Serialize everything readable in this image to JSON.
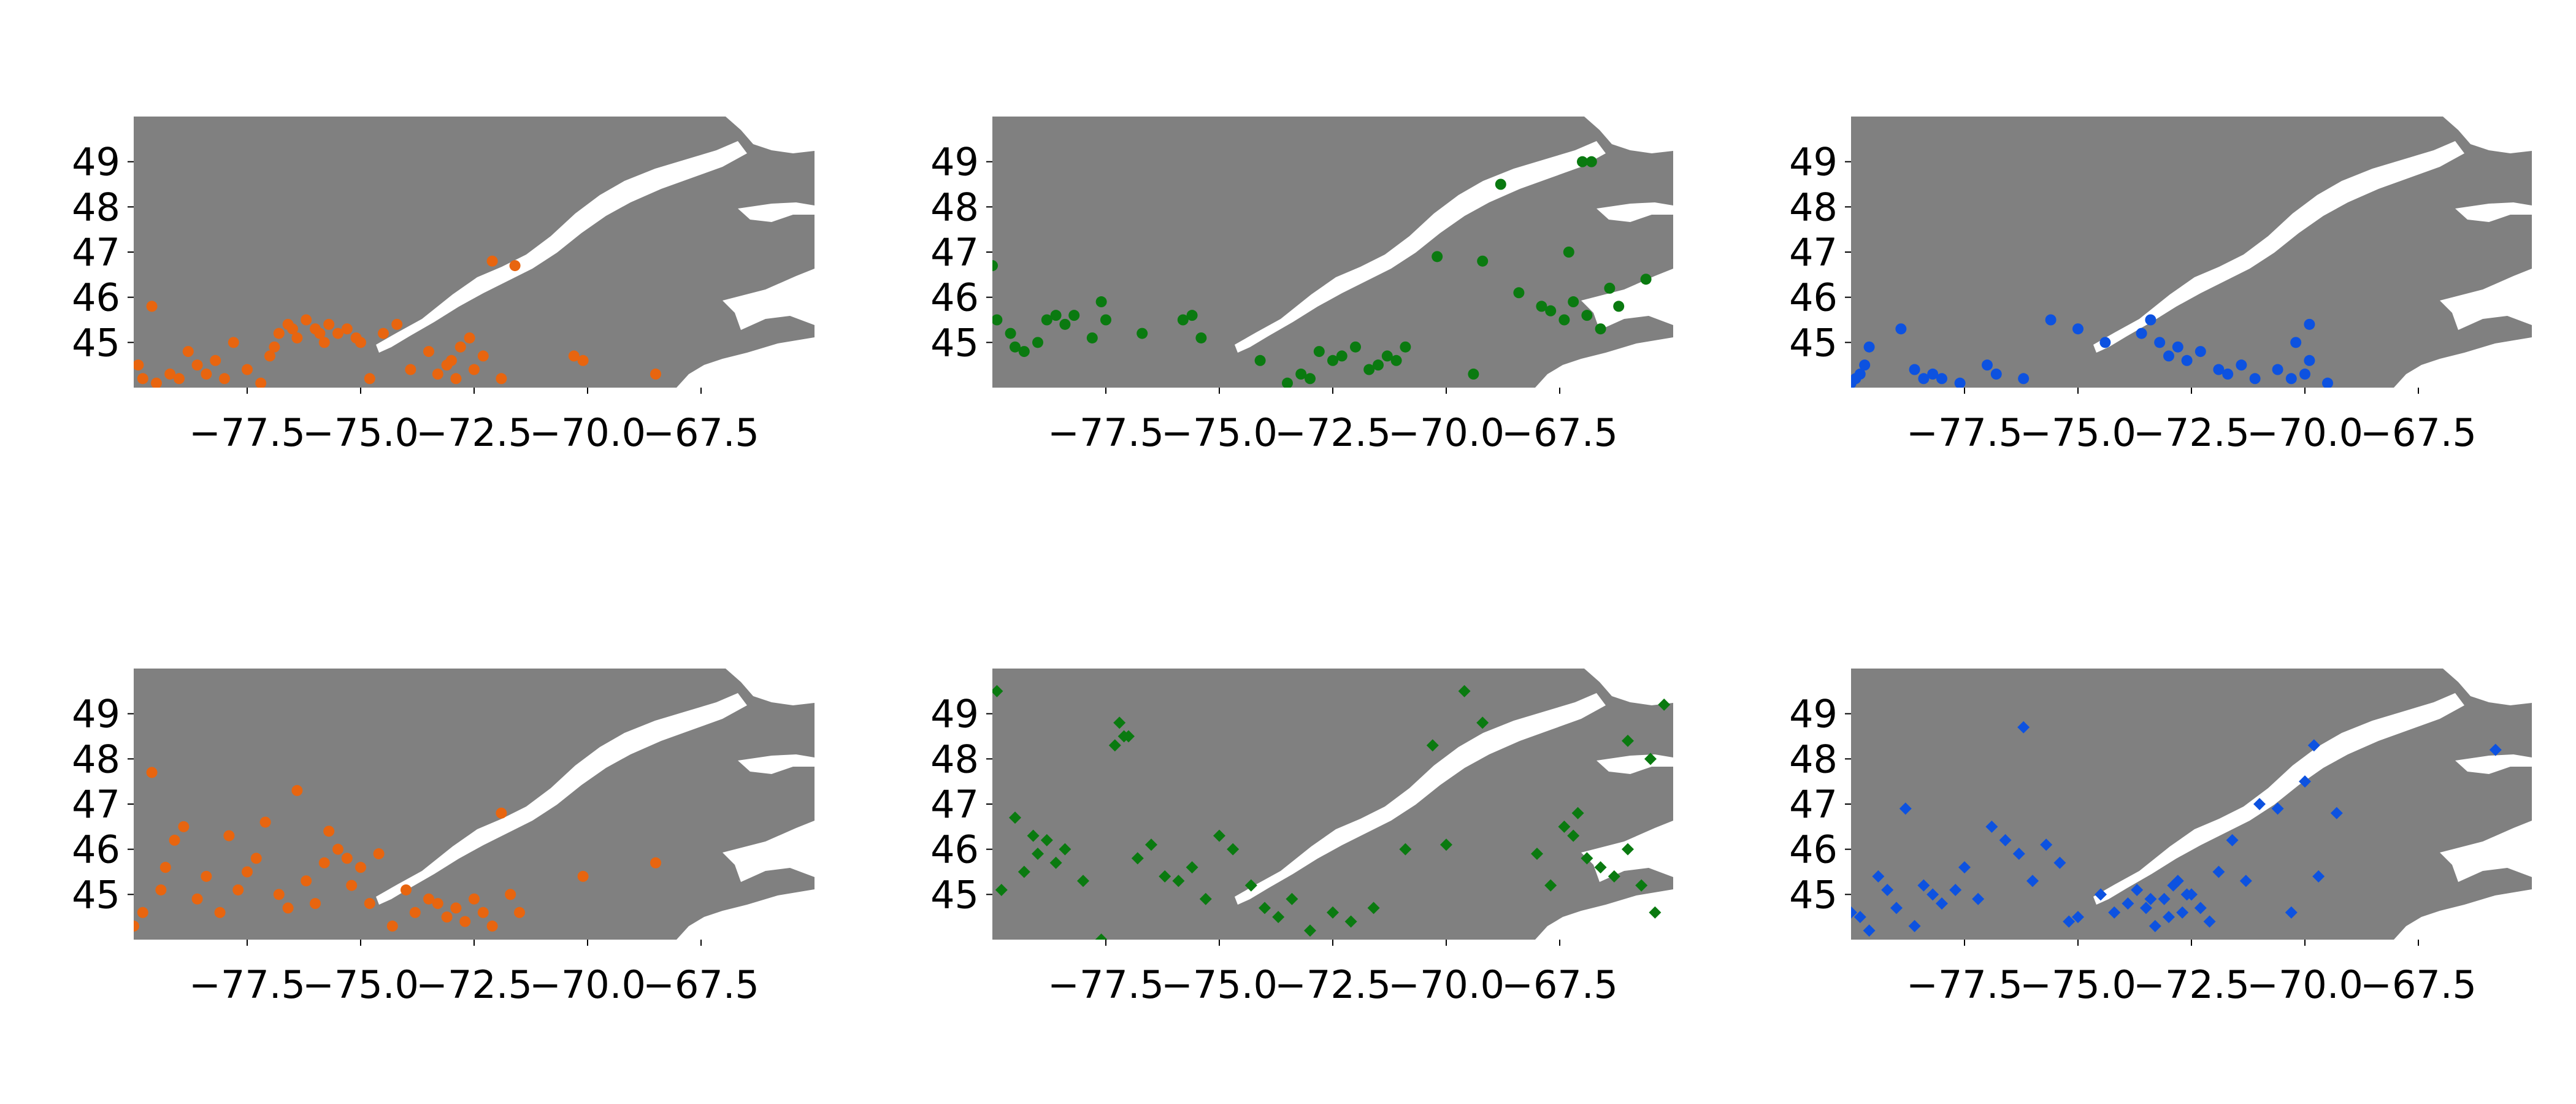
{
  "colors": {
    "land": "#808080",
    "water": "#ffffff",
    "orange": "#e8650f",
    "green": "#0a7a10",
    "blue": "#0d52e0"
  },
  "axes": {
    "lon_range": [
      -80.0,
      -65.0
    ],
    "lat_range": [
      44.0,
      50.0
    ],
    "x_ticks": [
      -77.5,
      -75.0,
      -72.5,
      -70.0,
      -67.5
    ],
    "x_tick_labels": [
      "−77.5",
      "−75.0",
      "−72.5",
      "−70.0",
      "−67.5"
    ],
    "y_ticks": [
      45,
      46,
      47,
      48,
      49
    ],
    "y_tick_labels": [
      "45",
      "46",
      "47",
      "48",
      "49"
    ]
  },
  "chart_data": [
    {
      "type": "scatter",
      "panel": "row-1-col-1",
      "marker": "circle",
      "color": "orange",
      "x": [
        -79.9,
        -79.8,
        -79.6,
        -79.5,
        -79.2,
        -79.0,
        -78.8,
        -78.6,
        -78.4,
        -78.2,
        -78.0,
        -77.8,
        -77.5,
        -77.2,
        -77.0,
        -76.9,
        -76.8,
        -76.6,
        -76.5,
        -76.4,
        -76.2,
        -76.0,
        -75.9,
        -75.8,
        -75.7,
        -75.5,
        -75.3,
        -75.1,
        -75.0,
        -74.8,
        -74.5,
        -74.2,
        -73.9,
        -73.5,
        -73.3,
        -73.1,
        -73.0,
        -72.9,
        -72.8,
        -72.6,
        -72.5,
        -72.3,
        -72.1,
        -71.9,
        -71.6,
        -70.3,
        -70.1,
        -68.5
      ],
      "y": [
        44.5,
        44.2,
        45.8,
        44.1,
        44.3,
        44.2,
        44.8,
        44.5,
        44.3,
        44.6,
        44.2,
        45.0,
        44.4,
        44.1,
        44.7,
        44.9,
        45.2,
        45.4,
        45.3,
        45.1,
        45.5,
        45.3,
        45.2,
        45.0,
        45.4,
        45.2,
        45.3,
        45.1,
        45.0,
        44.2,
        45.2,
        45.4,
        44.4,
        44.8,
        44.3,
        44.5,
        44.6,
        44.2,
        44.9,
        45.1,
        44.4,
        44.7,
        46.8,
        44.2,
        46.7,
        44.7,
        44.6,
        44.3
      ]
    },
    {
      "type": "scatter",
      "panel": "row-1-col-2",
      "marker": "circle",
      "color": "green",
      "x": [
        -80.0,
        -79.9,
        -79.6,
        -79.5,
        -79.3,
        -79.0,
        -78.8,
        -78.6,
        -78.4,
        -78.2,
        -77.8,
        -77.6,
        -77.5,
        -76.7,
        -75.8,
        -75.6,
        -75.4,
        -74.1,
        -73.5,
        -73.2,
        -73.0,
        -72.8,
        -72.5,
        -72.3,
        -72.0,
        -71.7,
        -71.5,
        -71.3,
        -71.1,
        -70.9,
        -70.2,
        -69.4,
        -68.8,
        -68.4,
        -67.9,
        -67.7,
        -67.4,
        -67.2,
        -66.9,
        -66.6,
        -66.4,
        -66.2,
        -65.6,
        -67.0,
        -66.8,
        -69.2,
        -67.3
      ],
      "y": [
        46.7,
        45.5,
        45.2,
        44.9,
        44.8,
        45.0,
        45.5,
        45.6,
        45.4,
        45.6,
        45.1,
        45.9,
        45.5,
        45.2,
        45.5,
        45.6,
        45.1,
        44.6,
        44.1,
        44.3,
        44.2,
        44.8,
        44.6,
        44.7,
        44.9,
        44.4,
        44.5,
        44.7,
        44.6,
        44.9,
        46.9,
        44.3,
        48.5,
        46.1,
        45.8,
        45.7,
        45.5,
        45.9,
        45.6,
        45.3,
        46.2,
        45.8,
        46.4,
        49.0,
        49.0,
        46.8,
        47.0
      ]
    },
    {
      "type": "scatter",
      "panel": "row-1-col-3",
      "marker": "circle",
      "color": "blue",
      "x": [
        -80.0,
        -79.9,
        -79.8,
        -79.7,
        -79.6,
        -78.9,
        -78.6,
        -78.4,
        -78.2,
        -78.0,
        -77.6,
        -77.0,
        -76.8,
        -76.2,
        -75.6,
        -75.0,
        -74.4,
        -73.6,
        -73.4,
        -73.2,
        -73.0,
        -72.8,
        -72.6,
        -72.3,
        -71.9,
        -71.7,
        -71.4,
        -71.1,
        -70.6,
        -70.3,
        -70.2,
        -70.0,
        -69.9,
        -69.5,
        -69.9
      ],
      "y": [
        44.1,
        44.2,
        44.3,
        44.5,
        44.9,
        45.3,
        44.4,
        44.2,
        44.3,
        44.2,
        44.1,
        44.5,
        44.3,
        44.2,
        45.5,
        45.3,
        45.0,
        45.2,
        45.5,
        45.0,
        44.7,
        44.9,
        44.6,
        44.8,
        44.4,
        44.3,
        44.5,
        44.2,
        44.4,
        44.2,
        45.0,
        44.3,
        45.4,
        44.1,
        44.6
      ]
    },
    {
      "type": "scatter",
      "panel": "row-2-col-1",
      "marker": "circle",
      "color": "orange",
      "x": [
        -80.0,
        -79.8,
        -79.6,
        -79.4,
        -79.3,
        -79.1,
        -78.9,
        -78.6,
        -78.4,
        -78.1,
        -77.9,
        -77.7,
        -77.5,
        -77.3,
        -77.1,
        -76.8,
        -76.6,
        -76.4,
        -76.2,
        -76.0,
        -75.8,
        -75.7,
        -75.5,
        -75.3,
        -75.2,
        -75.0,
        -74.8,
        -74.6,
        -74.3,
        -74.0,
        -73.8,
        -73.5,
        -73.3,
        -73.1,
        -72.9,
        -72.7,
        -72.5,
        -72.3,
        -72.1,
        -71.9,
        -71.7,
        -71.5,
        -70.1,
        -68.5
      ],
      "y": [
        44.3,
        44.6,
        47.7,
        45.1,
        45.6,
        46.2,
        46.5,
        44.9,
        45.4,
        44.6,
        46.3,
        45.1,
        45.5,
        45.8,
        46.6,
        45.0,
        44.7,
        47.3,
        45.3,
        44.8,
        45.7,
        46.4,
        46.0,
        45.8,
        45.2,
        45.6,
        44.8,
        45.9,
        44.3,
        45.1,
        44.6,
        44.9,
        44.8,
        44.5,
        44.7,
        44.4,
        44.9,
        44.6,
        44.3,
        46.8,
        45.0,
        44.6,
        45.4,
        45.7
      ]
    },
    {
      "type": "scatter",
      "panel": "row-2-col-2",
      "marker": "diamond",
      "color": "green",
      "x": [
        -79.9,
        -79.8,
        -79.5,
        -79.3,
        -79.1,
        -79.0,
        -78.8,
        -78.6,
        -78.4,
        -78.0,
        -77.6,
        -77.3,
        -77.1,
        -76.8,
        -76.5,
        -76.2,
        -75.9,
        -75.6,
        -75.3,
        -75.0,
        -74.7,
        -74.3,
        -74.0,
        -73.7,
        -73.4,
        -73.0,
        -72.5,
        -72.1,
        -71.6,
        -70.9,
        -70.3,
        -70.0,
        -69.6,
        -68.0,
        -67.7,
        -67.4,
        -67.2,
        -66.9,
        -66.6,
        -66.3,
        -66.0,
        -65.7,
        -65.4,
        -65.2,
        -65.5,
        -66.0,
        -67.1,
        -69.2,
        -77.2,
        -77.0
      ],
      "y": [
        49.5,
        45.1,
        46.7,
        45.5,
        46.3,
        45.9,
        46.2,
        45.7,
        46.0,
        45.3,
        44.0,
        48.3,
        48.5,
        45.8,
        46.1,
        45.4,
        45.3,
        45.6,
        44.9,
        46.3,
        46.0,
        45.2,
        44.7,
        44.5,
        44.9,
        44.2,
        44.6,
        44.4,
        44.7,
        46.0,
        48.3,
        46.1,
        49.5,
        45.9,
        45.2,
        46.5,
        46.3,
        45.8,
        45.6,
        45.4,
        46.0,
        45.2,
        44.6,
        49.2,
        48.0,
        48.4,
        46.8,
        48.8,
        48.8,
        48.5
      ]
    },
    {
      "type": "scatter",
      "panel": "row-2-col-3",
      "marker": "diamond",
      "color": "blue",
      "x": [
        -80.0,
        -79.8,
        -79.6,
        -79.4,
        -79.2,
        -79.0,
        -78.8,
        -78.6,
        -78.4,
        -78.2,
        -78.0,
        -77.7,
        -77.5,
        -77.2,
        -76.9,
        -76.6,
        -76.3,
        -76.0,
        -75.7,
        -75.4,
        -75.2,
        -75.0,
        -74.5,
        -74.2,
        -73.9,
        -73.7,
        -73.5,
        -73.3,
        -73.1,
        -72.9,
        -72.7,
        -72.5,
        -72.3,
        -72.1,
        -71.9,
        -71.6,
        -71.3,
        -71.0,
        -70.6,
        -70.3,
        -70.0,
        -69.7,
        -69.3,
        -73.4,
        -73.0,
        -72.8,
        -72.6,
        -69.8,
        -65.8,
        -76.2
      ],
      "y": [
        44.6,
        44.5,
        44.2,
        45.4,
        45.1,
        44.7,
        46.9,
        44.3,
        45.2,
        45.0,
        44.8,
        45.1,
        45.6,
        44.9,
        46.5,
        46.2,
        45.9,
        45.3,
        46.1,
        45.7,
        44.4,
        44.5,
        45.0,
        44.6,
        44.8,
        45.1,
        44.7,
        44.3,
        44.9,
        45.2,
        44.6,
        45.0,
        44.7,
        44.4,
        45.5,
        46.2,
        45.3,
        47.0,
        46.9,
        44.6,
        47.5,
        45.4,
        46.8,
        44.9,
        44.5,
        45.3,
        45.0,
        48.3,
        48.2,
        48.7
      ]
    }
  ]
}
